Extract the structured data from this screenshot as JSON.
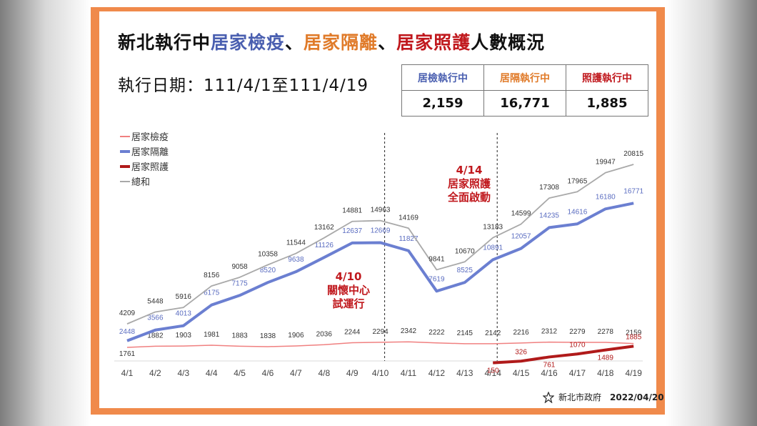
{
  "title": {
    "prefix": "新北執行中",
    "p1": "居家檢疫",
    "sep1": "、",
    "p2": "居家隔離",
    "sep2": "、",
    "p3": "居家照護",
    "suffix": "人數概況"
  },
  "date_range": "執行日期：111/4/1至111/4/19",
  "summary_table": {
    "headers": [
      "居檢執行中",
      "居隔執行中",
      "照護執行中"
    ],
    "values": [
      "2,159",
      "16,771",
      "1,885"
    ]
  },
  "colors": {
    "quarantine": "#f08080",
    "isolation": "#6b7fd1",
    "care": "#b01a1a",
    "total": "#a9a9a9",
    "frame": "#f08a4b",
    "header1": "#4a5fb0",
    "header2": "#e07b2a",
    "header3": "#c0181d"
  },
  "annotations": [
    {
      "x": "4/10",
      "text": [
        "4/10",
        "關懷中心",
        "試運行"
      ]
    },
    {
      "x": "4/14",
      "text": [
        "4/14",
        "居家照護",
        "全面啟動"
      ]
    }
  ],
  "footer": {
    "org": "新北市政府",
    "org_en": "New Taipei City Government",
    "date": "2022/04/20"
  },
  "chart_data": {
    "type": "line",
    "categories": [
      "4/1",
      "4/2",
      "4/3",
      "4/4",
      "4/5",
      "4/6",
      "4/7",
      "4/8",
      "4/9",
      "4/10",
      "4/11",
      "4/12",
      "4/13",
      "4/14",
      "4/15",
      "4/16",
      "4/17",
      "4/18",
      "4/19"
    ],
    "series": [
      {
        "name": "居家檢疫",
        "values": [
          1761,
          1882,
          1903,
          1981,
          1883,
          1838,
          1906,
          2036,
          2244,
          2294,
          2342,
          2222,
          2145,
          2142,
          2216,
          2312,
          2279,
          2278,
          2159
        ]
      },
      {
        "name": "居家隔離",
        "values": [
          2448,
          3566,
          4013,
          6175,
          7175,
          8520,
          9638,
          11126,
          12637,
          12669,
          11827,
          7619,
          8525,
          10891,
          12057,
          14235,
          14616,
          16180,
          16771
        ]
      },
      {
        "name": "居家照護",
        "values": [
          null,
          null,
          null,
          null,
          null,
          null,
          null,
          null,
          null,
          null,
          null,
          null,
          null,
          150,
          326,
          761,
          1070,
          1489,
          1885
        ]
      },
      {
        "name": "總和",
        "values": [
          4209,
          5448,
          5916,
          8156,
          9058,
          10358,
          11544,
          13162,
          14881,
          14963,
          14169,
          9841,
          10670,
          13183,
          14599,
          17308,
          17965,
          19947,
          20815
        ]
      }
    ],
    "legend_position": "top-left",
    "grid": false
  }
}
